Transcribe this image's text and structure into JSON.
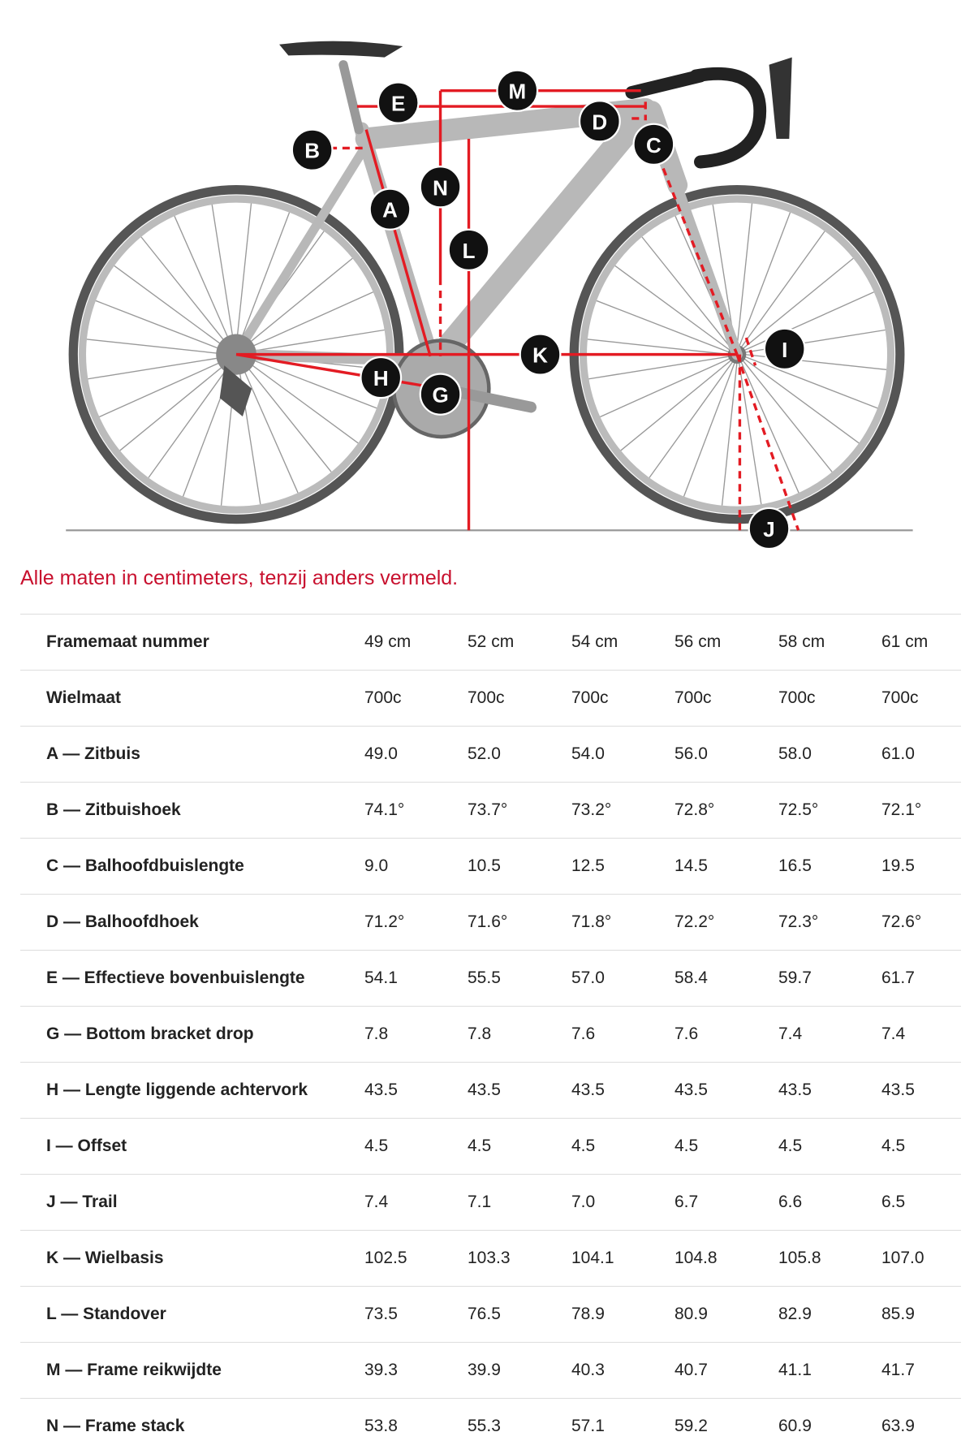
{
  "diagram": {
    "labels": [
      "M",
      "E",
      "D",
      "C",
      "B",
      "N",
      "A",
      "L",
      "K",
      "I",
      "H",
      "G",
      "J"
    ]
  },
  "note": "Alle maten in centimeters, tenzij anders vermeld.",
  "table": {
    "header": [
      "Framemaat nummer",
      "49 cm",
      "52 cm",
      "54 cm",
      "56 cm",
      "58 cm",
      "61 cm"
    ],
    "rows": [
      [
        "Wielmaat",
        "700c",
        "700c",
        "700c",
        "700c",
        "700c",
        "700c"
      ],
      [
        "A — Zitbuis",
        "49.0",
        "52.0",
        "54.0",
        "56.0",
        "58.0",
        "61.0"
      ],
      [
        "B — Zitbuishoek",
        "74.1°",
        "73.7°",
        "73.2°",
        "72.8°",
        "72.5°",
        "72.1°"
      ],
      [
        "C — Balhoofdbuislengte",
        "9.0",
        "10.5",
        "12.5",
        "14.5",
        "16.5",
        "19.5"
      ],
      [
        "D — Balhoofdhoek",
        "71.2°",
        "71.6°",
        "71.8°",
        "72.2°",
        "72.3°",
        "72.6°"
      ],
      [
        "E — Effectieve bovenbuislengte",
        "54.1",
        "55.5",
        "57.0",
        "58.4",
        "59.7",
        "61.7"
      ],
      [
        "G — Bottom bracket drop",
        "7.8",
        "7.8",
        "7.6",
        "7.6",
        "7.4",
        "7.4"
      ],
      [
        "H — Lengte liggende achtervork",
        "43.5",
        "43.5",
        "43.5",
        "43.5",
        "43.5",
        "43.5"
      ],
      [
        "I — Offset",
        "4.5",
        "4.5",
        "4.5",
        "4.5",
        "4.5",
        "4.5"
      ],
      [
        "J — Trail",
        "7.4",
        "7.1",
        "7.0",
        "6.7",
        "6.6",
        "6.5"
      ],
      [
        "K — Wielbasis",
        "102.5",
        "103.3",
        "104.1",
        "104.8",
        "105.8",
        "107.0"
      ],
      [
        "L — Standover",
        "73.5",
        "76.5",
        "78.9",
        "80.9",
        "82.9",
        "85.9"
      ],
      [
        "M — Frame reikwijdte",
        "39.3",
        "39.9",
        "40.3",
        "40.7",
        "41.1",
        "41.7"
      ],
      [
        "N — Frame stack",
        "53.8",
        "55.3",
        "57.1",
        "59.2",
        "60.9",
        "63.9"
      ]
    ]
  }
}
